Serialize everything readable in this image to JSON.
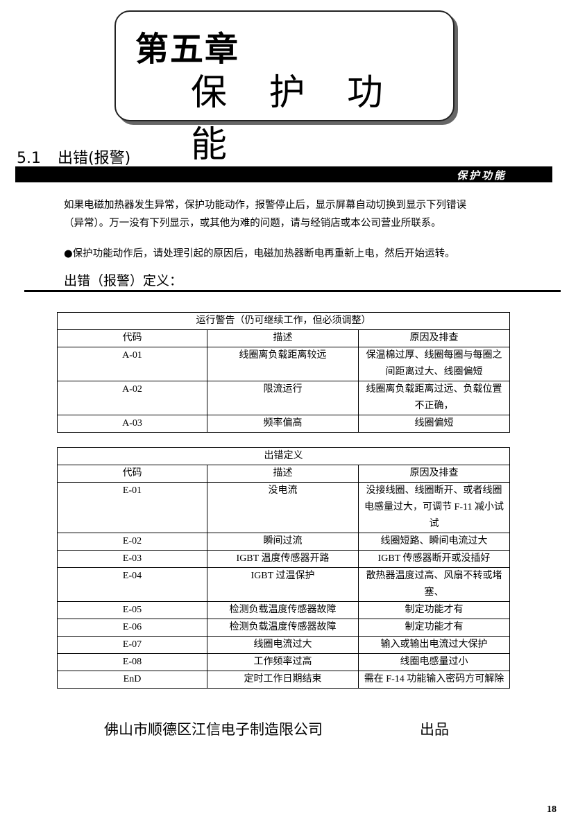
{
  "chapter": {
    "number": "第五章",
    "title": "保 护 功 能"
  },
  "section": {
    "number": "5.1",
    "title": "出错(报警)",
    "bar_label": "保护功能"
  },
  "intro": {
    "line1": "如果电磁加热器发生异常，保护功能动作，报警停止后，显示屏幕自动切换到显示下列错误",
    "line2": "（异常）。万一没有下列显示，或其他为难的问题，请与经销店或本公司营业所联系。",
    "bullet": "●保护功能动作后，请处理引起的原因后，电磁加热器断电再重新上电，然后开始运转。"
  },
  "definition_heading": "出错（报警）定义：",
  "warning_table": {
    "title": "运行警告（仍可继续工作，但必须调整）",
    "headers": [
      "代码",
      "描述",
      "原因及排查"
    ],
    "rows": [
      [
        "A-01",
        "线圈离负载距离较远",
        "保温棉过厚、线圈每圈与每圈之间距离过大、线圈偏短"
      ],
      [
        "A-02",
        "限流运行",
        "线圈离负载距离过远、负载位置不正确，"
      ],
      [
        "A-03",
        "频率偏高",
        "线圈偏短"
      ]
    ]
  },
  "error_table": {
    "title": "出错定义",
    "headers": [
      "代码",
      "描述",
      "原因及排查"
    ],
    "rows": [
      [
        "E-01",
        "没电流",
        "没接线圈、线圈断开、或者线圈电感量过大，可调节 F-11 减小试试"
      ],
      [
        "E-02",
        "瞬间过流",
        "线圈短路、瞬间电流过大"
      ],
      [
        "E-03",
        "IGBT 温度传感器开路",
        "IGBT 传感器断开或没插好"
      ],
      [
        "E-04",
        "IGBT 过温保护",
        "散热器温度过高、风扇不转或堵塞、"
      ],
      [
        "E-05",
        "检测负载温度传感器故障",
        "制定功能才有"
      ],
      [
        "E-06",
        "检测负载温度传感器故障",
        "制定功能才有"
      ],
      [
        "E-07",
        "线圈电流过大",
        "输入或输出电流过大保护"
      ],
      [
        "E-08",
        "工作频率过高",
        "线圈电感量过小"
      ],
      [
        "EnD",
        "定时工作日期结束",
        "需在 F-14 功能输入密码方可解除"
      ]
    ]
  },
  "footer": {
    "company": "佛山市顺德区江信电子制造限公司",
    "produced_by": "出品"
  },
  "page_number": "18"
}
